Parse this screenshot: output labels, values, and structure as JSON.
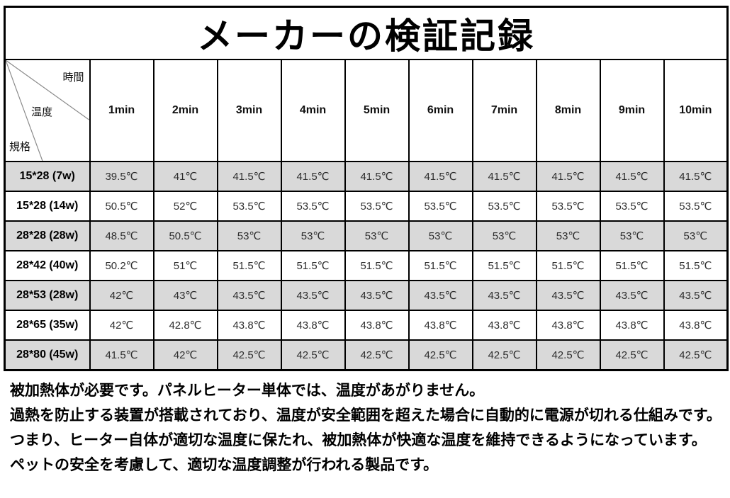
{
  "page_title": "メーカーの検証記録",
  "table": {
    "corner": {
      "time_label": "時間",
      "temp_label": "温度",
      "spec_label": "規格"
    },
    "columns": [
      "1min",
      "2min",
      "3min",
      "4min",
      "5min",
      "6min",
      "7min",
      "8min",
      "9min",
      "10min"
    ],
    "rows": [
      {
        "spec": "15*28 (7w)",
        "shaded": true,
        "values": [
          "39.5℃",
          "41℃",
          "41.5℃",
          "41.5℃",
          "41.5℃",
          "41.5℃",
          "41.5℃",
          "41.5℃",
          "41.5℃",
          "41.5℃"
        ]
      },
      {
        "spec": "15*28 (14w)",
        "shaded": false,
        "values": [
          "50.5℃",
          "52℃",
          "53.5℃",
          "53.5℃",
          "53.5℃",
          "53.5℃",
          "53.5℃",
          "53.5℃",
          "53.5℃",
          "53.5℃"
        ]
      },
      {
        "spec": "28*28 (28w)",
        "shaded": true,
        "values": [
          "48.5℃",
          "50.5℃",
          "53℃",
          "53℃",
          "53℃",
          "53℃",
          "53℃",
          "53℃",
          "53℃",
          "53℃"
        ]
      },
      {
        "spec": "28*42 (40w)",
        "shaded": false,
        "values": [
          "50.2℃",
          "51℃",
          "51.5℃",
          "51.5℃",
          "51.5℃",
          "51.5℃",
          "51.5℃",
          "51.5℃",
          "51.5℃",
          "51.5℃"
        ]
      },
      {
        "spec": "28*53 (28w)",
        "shaded": true,
        "values": [
          "42℃",
          "43℃",
          "43.5℃",
          "43.5℃",
          "43.5℃",
          "43.5℃",
          "43.5℃",
          "43.5℃",
          "43.5℃",
          "43.5℃"
        ]
      },
      {
        "spec": "28*65 (35w)",
        "shaded": false,
        "values": [
          "42℃",
          "42.8℃",
          "43.8℃",
          "43.8℃",
          "43.8℃",
          "43.8℃",
          "43.8℃",
          "43.8℃",
          "43.8℃",
          "43.8℃"
        ]
      },
      {
        "spec": "28*80 (45w)",
        "shaded": true,
        "values": [
          "41.5℃",
          "42℃",
          "42.5℃",
          "42.5℃",
          "42.5℃",
          "42.5℃",
          "42.5℃",
          "42.5℃",
          "42.5℃",
          "42.5℃"
        ]
      }
    ]
  },
  "notes": [
    "被加熱体が必要です。パネルヒーター単体では、温度があがりません。",
    "過熱を防止する装置が搭載されており、温度が安全範囲を超えた場合に自動的に電源が切れる仕組みです。",
    "つまり、ヒーター自体が適切な温度に保たれ、被加熱体が快適な温度を維持できるようになっています。",
    "ペットの安全を考慮して、適切な温度調整が行われる製品です。"
  ],
  "colors": {
    "row_shade": "#d9d9d9",
    "border": "#000000",
    "diagonal_line": "#8a8a8a"
  }
}
